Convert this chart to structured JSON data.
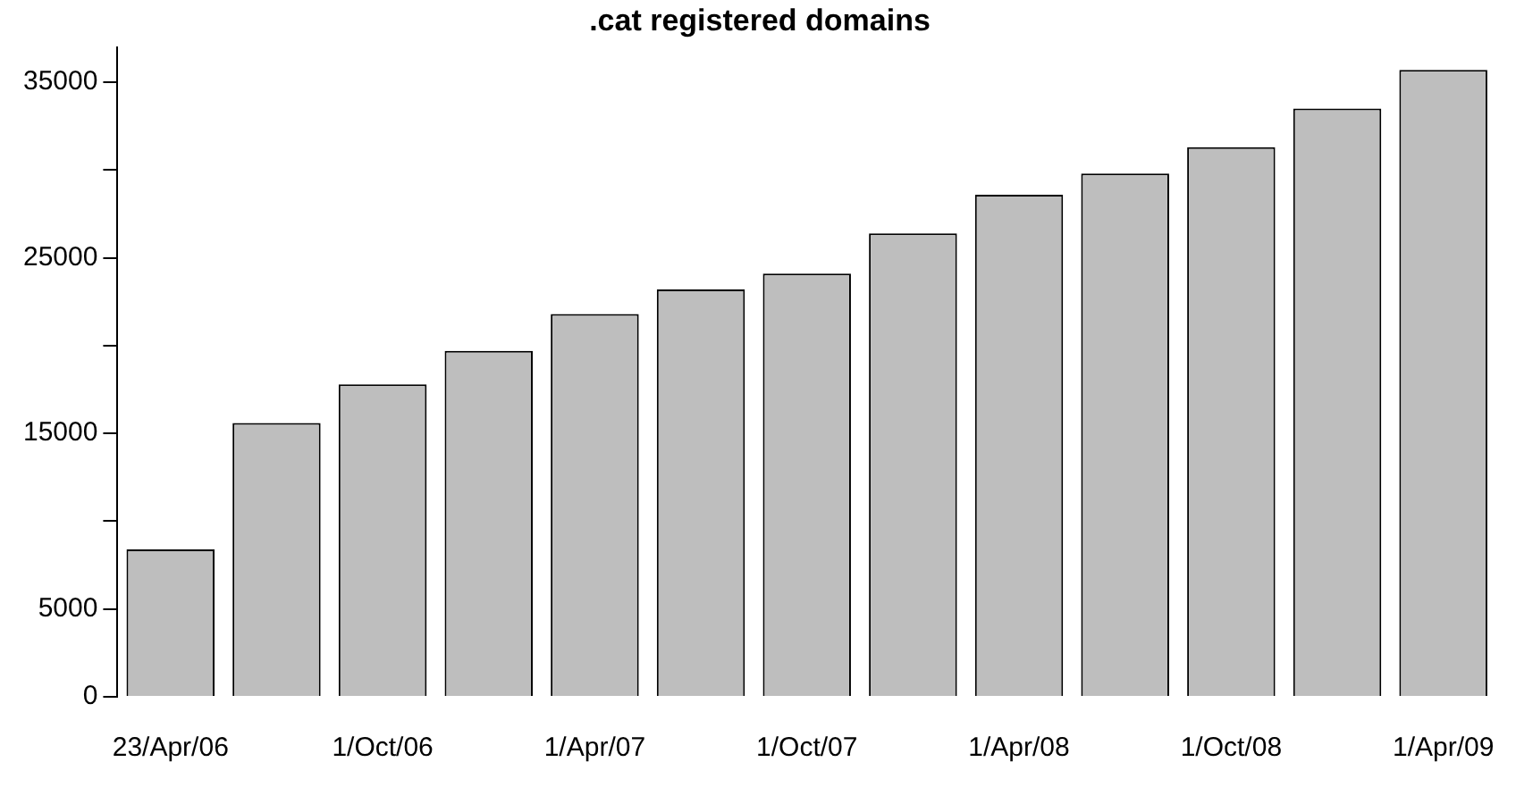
{
  "chart_data": {
    "type": "bar",
    "title": ".cat registered domains",
    "categories": [
      "23/Apr/06",
      null,
      "1/Oct/06",
      null,
      "1/Apr/07",
      null,
      "1/Oct/07",
      null,
      "1/Apr/08",
      null,
      "1/Oct/08",
      null,
      "1/Apr/09"
    ],
    "values": [
      8400,
      15600,
      17800,
      19700,
      21800,
      23200,
      24100,
      26400,
      28600,
      29800,
      31300,
      33500,
      35700
    ],
    "color": "#bebebe",
    "ylim": [
      0,
      37000
    ],
    "yticks": [
      0,
      5000,
      {
        "value": 10000,
        "label": null
      },
      15000,
      {
        "value": 20000,
        "label": null
      },
      25000,
      {
        "value": 30000,
        "label": null
      },
      35000
    ],
    "legend": false
  }
}
